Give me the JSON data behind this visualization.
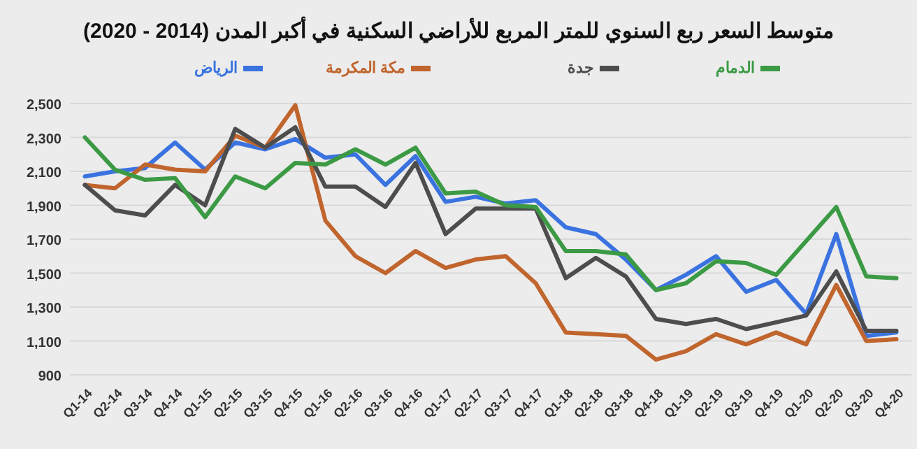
{
  "chart_data": {
    "type": "line",
    "title": "متوسط السعر ربع السنوي للمتر المربع للأراضي السكنية في أكبر المدن (2014 - 2020)",
    "categories": [
      "Q1-14",
      "Q2-14",
      "Q3-14",
      "Q4-14",
      "Q1-15",
      "Q2-15",
      "Q3-15",
      "Q4-15",
      "Q1-16",
      "Q2-16",
      "Q3-16",
      "Q4-16",
      "Q1-17",
      "Q2-17",
      "Q3-17",
      "Q4-17",
      "Q1-18",
      "Q2-18",
      "Q3-18",
      "Q4-18",
      "Q1-19",
      "Q2-19",
      "Q3-19",
      "Q4-19",
      "Q1-20",
      "Q2-20",
      "Q3-20",
      "Q4-20"
    ],
    "series": [
      {
        "name": "الرياض",
        "color": "#3a73e0",
        "values": [
          2070,
          2100,
          2120,
          2270,
          2110,
          2270,
          2230,
          2290,
          2180,
          2200,
          2020,
          2190,
          1920,
          1950,
          1910,
          1930,
          1770,
          1730,
          1580,
          1400,
          1490,
          1600,
          1390,
          1460,
          1260,
          1730,
          1130,
          1150
        ]
      },
      {
        "name": "مكة المكرمة",
        "color": "#c0652d",
        "values": [
          2020,
          2000,
          2140,
          2110,
          2100,
          2310,
          2240,
          2490,
          1810,
          1600,
          1500,
          1630,
          1530,
          1580,
          1600,
          1440,
          1150,
          1140,
          1130,
          990,
          1040,
          1140,
          1080,
          1150,
          1080,
          1430,
          1100,
          1110
        ]
      },
      {
        "name": "جدة",
        "color": "#4d4d4d",
        "values": [
          2020,
          1870,
          1840,
          2020,
          1900,
          2350,
          2240,
          2360,
          2010,
          2010,
          1890,
          2150,
          1730,
          1880,
          1880,
          1880,
          1470,
          1590,
          1480,
          1230,
          1200,
          1230,
          1170,
          1210,
          1250,
          1510,
          1160,
          1160
        ]
      },
      {
        "name": "الدمام",
        "color": "#3c9a45",
        "values": [
          2300,
          2110,
          2050,
          2060,
          1830,
          2070,
          2000,
          2150,
          2140,
          2230,
          2140,
          2240,
          1970,
          1980,
          1900,
          1890,
          1630,
          1630,
          1610,
          1400,
          1440,
          1570,
          1560,
          1490,
          1690,
          1890,
          1480,
          1470
        ]
      }
    ],
    "ylim": [
      900,
      2500
    ],
    "yticks": [
      {
        "value": 900,
        "label": "900"
      },
      {
        "value": 1100,
        "label": "1,100"
      },
      {
        "value": 1300,
        "label": "1,300"
      },
      {
        "value": 1500,
        "label": "1,500"
      },
      {
        "value": 1700,
        "label": "1,700"
      },
      {
        "value": 1900,
        "label": "1,900"
      },
      {
        "value": 2100,
        "label": "2,100"
      },
      {
        "value": 2300,
        "label": "2,300"
      },
      {
        "value": 2500,
        "label": "2,500"
      }
    ],
    "grid": "y",
    "legend": "top",
    "marker": "none",
    "line_style": "solid"
  }
}
